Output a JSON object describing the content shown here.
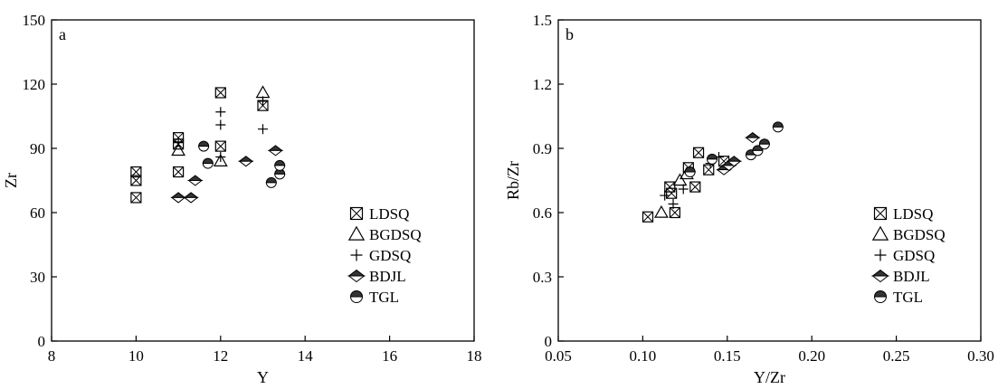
{
  "chart_data": [
    {
      "type": "scatter",
      "panel_label": "a",
      "xlabel": "Y",
      "ylabel": "Zr",
      "xlim": [
        8,
        18
      ],
      "ylim": [
        0,
        150
      ],
      "xticks": [
        "8",
        "10",
        "12",
        "14",
        "16",
        "18"
      ],
      "yticks": [
        "0",
        "30",
        "60",
        "90",
        "120",
        "150"
      ],
      "legend_position": "lower-right",
      "series": [
        {
          "name": "LDSQ",
          "marker": "boxcross",
          "points": [
            [
              10,
              79
            ],
            [
              10,
              75
            ],
            [
              10,
              67
            ],
            [
              11,
              95
            ],
            [
              11,
              92
            ],
            [
              11,
              79
            ],
            [
              12,
              116
            ],
            [
              12,
              91
            ],
            [
              13,
              110
            ]
          ]
        },
        {
          "name": "BGDSQ",
          "marker": "triangle",
          "points": [
            [
              11,
              89
            ],
            [
              12,
              84
            ],
            [
              13,
              116
            ]
          ]
        },
        {
          "name": "GDSQ",
          "marker": "plus",
          "points": [
            [
              11,
              93
            ],
            [
              12,
              107
            ],
            [
              12,
              101
            ],
            [
              12,
              86
            ],
            [
              13,
              99
            ],
            [
              13,
              112
            ]
          ]
        },
        {
          "name": "BDJL",
          "marker": "halfdiamond",
          "points": [
            [
              11,
              67
            ],
            [
              11.3,
              67
            ],
            [
              11.4,
              75
            ],
            [
              12.6,
              84
            ],
            [
              13.3,
              89
            ]
          ]
        },
        {
          "name": "TGL",
          "marker": "halfcircle",
          "points": [
            [
              11.6,
              91
            ],
            [
              11.7,
              83
            ],
            [
              13.2,
              74
            ],
            [
              13.4,
              78
            ],
            [
              13.4,
              82
            ]
          ]
        }
      ]
    },
    {
      "type": "scatter",
      "panel_label": "b",
      "xlabel": "Y/Zr",
      "ylabel": "Rb/Zr",
      "xlim": [
        0.05,
        0.3
      ],
      "ylim": [
        0,
        1.5
      ],
      "xticks": [
        "0.05",
        "0.10",
        "0.15",
        "0.20",
        "0.25",
        "0.30"
      ],
      "yticks": [
        "0",
        "0.3",
        "0.6",
        "0.9",
        "1.2",
        "1.5"
      ],
      "legend_position": "lower-right",
      "series": [
        {
          "name": "LDSQ",
          "marker": "boxcross",
          "points": [
            [
              0.103,
              0.58
            ],
            [
              0.116,
              0.72
            ],
            [
              0.117,
              0.69
            ],
            [
              0.119,
              0.6
            ],
            [
              0.127,
              0.81
            ],
            [
              0.131,
              0.72
            ],
            [
              0.133,
              0.88
            ],
            [
              0.139,
              0.8
            ],
            [
              0.148,
              0.84
            ]
          ]
        },
        {
          "name": "BGDSQ",
          "marker": "triangle",
          "points": [
            [
              0.111,
              0.6
            ],
            [
              0.122,
              0.75
            ],
            [
              0.126,
              0.78
            ]
          ]
        },
        {
          "name": "GDSQ",
          "marker": "plus",
          "points": [
            [
              0.113,
              0.68
            ],
            [
              0.118,
              0.64
            ],
            [
              0.124,
              0.71
            ],
            [
              0.14,
              0.83
            ],
            [
              0.145,
              0.86
            ]
          ]
        },
        {
          "name": "BDJL",
          "marker": "halfdiamond",
          "points": [
            [
              0.148,
              0.8
            ],
            [
              0.151,
              0.82
            ],
            [
              0.154,
              0.84
            ],
            [
              0.165,
              0.95
            ]
          ]
        },
        {
          "name": "TGL",
          "marker": "halfcircle",
          "points": [
            [
              0.128,
              0.79
            ],
            [
              0.141,
              0.85
            ],
            [
              0.164,
              0.87
            ],
            [
              0.168,
              0.89
            ],
            [
              0.172,
              0.92
            ],
            [
              0.18,
              1.0
            ]
          ]
        }
      ]
    }
  ]
}
